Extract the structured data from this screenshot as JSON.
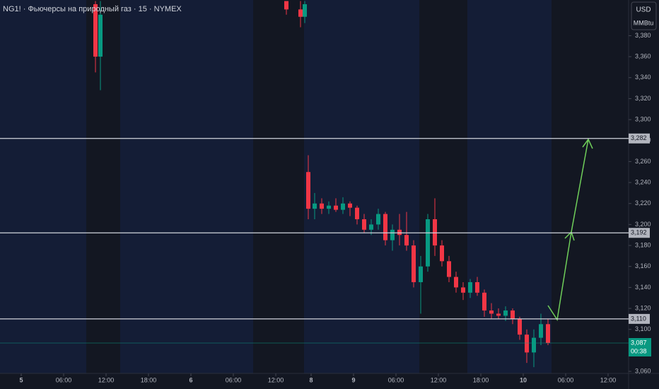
{
  "chart_data": {
    "type": "candlestick",
    "title": "NG1! · Фьючерсы на природный газ · 15 · NYMEX",
    "currency": "USD",
    "unit": "MMBtu",
    "up_color": "#089981",
    "down_color": "#f23645",
    "xlim": [
      0,
      89
    ],
    "ylim": [
      3058,
      3414
    ],
    "xticks": [
      {
        "value": 3,
        "label": "5"
      },
      {
        "value": 9,
        "label": "06:00"
      },
      {
        "value": 15,
        "label": "12:00"
      },
      {
        "value": 21,
        "label": "18:00"
      },
      {
        "value": 27,
        "label": "6"
      },
      {
        "value": 33,
        "label": "06:00"
      },
      {
        "value": 39,
        "label": "12:00"
      },
      {
        "value": 44,
        "label": "8"
      },
      {
        "value": 50,
        "label": "9"
      },
      {
        "value": 56,
        "label": "06:00"
      },
      {
        "value": 62,
        "label": "12:00"
      },
      {
        "value": 68,
        "label": "18:00"
      },
      {
        "value": 74,
        "label": "10"
      },
      {
        "value": 80,
        "label": "06:00"
      },
      {
        "value": 86,
        "label": "12:00"
      }
    ],
    "yticks": [
      {
        "value": 3060,
        "label": "3,060"
      },
      {
        "value": 3080,
        "label": "3,080"
      },
      {
        "value": 3100,
        "label": "3,100"
      },
      {
        "value": 3120,
        "label": "3,120"
      },
      {
        "value": 3140,
        "label": "3,140"
      },
      {
        "value": 3160,
        "label": "3,160"
      },
      {
        "value": 3180,
        "label": "3,180"
      },
      {
        "value": 3200,
        "label": "3,200"
      },
      {
        "value": 3220,
        "label": "3,220"
      },
      {
        "value": 3240,
        "label": "3,240"
      },
      {
        "value": 3260,
        "label": "3,260"
      },
      {
        "value": 3280,
        "label": "3,280"
      },
      {
        "value": 3300,
        "label": "3,300"
      },
      {
        "value": 3320,
        "label": "3,320"
      },
      {
        "value": 3340,
        "label": "3,340"
      },
      {
        "value": 3360,
        "label": "3,360"
      },
      {
        "value": 3380,
        "label": "3,380"
      }
    ],
    "levels": {
      "values": [
        3282,
        3192,
        3110
      ],
      "value_labels": [
        "3,282",
        "3,192",
        "3,110"
      ]
    },
    "last_price": {
      "value": 3087,
      "label": "3,087",
      "countdown": "00:38"
    },
    "x": [
      13.5,
      14.2,
      40.5,
      42.5,
      43.1,
      43.6,
      44.5,
      45.5,
      46.5,
      47.5,
      48.5,
      49.5,
      50.5,
      51.5,
      52.5,
      53.5,
      54.5,
      55.5,
      56.5,
      57.5,
      58.5,
      59.5,
      60.5,
      61.5,
      62.5,
      63.5,
      64.5,
      65.5,
      66.5,
      67.5,
      68.5,
      69.5,
      70.5,
      71.5,
      72.5,
      73.5,
      74.5,
      75.5,
      76.5,
      77.5
    ],
    "open": [
      3410,
      3360,
      3413,
      3405,
      3398,
      3250,
      3215,
      3220,
      3215,
      3218,
      3214,
      3220,
      3216,
      3205,
      3195,
      3200,
      3210,
      3185,
      3195,
      3190,
      3180,
      3145,
      3160,
      3205,
      3180,
      3165,
      3150,
      3140,
      3135,
      3145,
      3135,
      3118,
      3115,
      3113,
      3118,
      3110,
      3095,
      3078,
      3092,
      3105
    ],
    "high": [
      3413,
      3413,
      3413,
      3413,
      3413,
      3266,
      3230,
      3225,
      3222,
      3225,
      3226,
      3222,
      3218,
      3210,
      3205,
      3215,
      3212,
      3200,
      3210,
      3212,
      3185,
      3170,
      3210,
      3225,
      3185,
      3170,
      3155,
      3145,
      3148,
      3150,
      3138,
      3125,
      3120,
      3122,
      3120,
      3112,
      3100,
      3100,
      3115,
      3110
    ],
    "low": [
      3345,
      3328,
      3400,
      3388,
      3392,
      3205,
      3205,
      3210,
      3210,
      3212,
      3210,
      3208,
      3200,
      3192,
      3190,
      3195,
      3180,
      3175,
      3180,
      3175,
      3140,
      3115,
      3155,
      3170,
      3160,
      3145,
      3135,
      3128,
      3130,
      3132,
      3112,
      3110,
      3110,
      3108,
      3105,
      3090,
      3068,
      3064,
      3085,
      3085
    ],
    "close": [
      3360,
      3400,
      3405,
      3398,
      3410,
      3215,
      3220,
      3215,
      3218,
      3214,
      3220,
      3216,
      3205,
      3195,
      3200,
      3210,
      3185,
      3195,
      3190,
      3180,
      3145,
      3160,
      3205,
      3180,
      3165,
      3150,
      3140,
      3135,
      3145,
      3135,
      3118,
      3115,
      3113,
      3118,
      3110,
      3095,
      3078,
      3092,
      3105,
      3087
    ]
  }
}
